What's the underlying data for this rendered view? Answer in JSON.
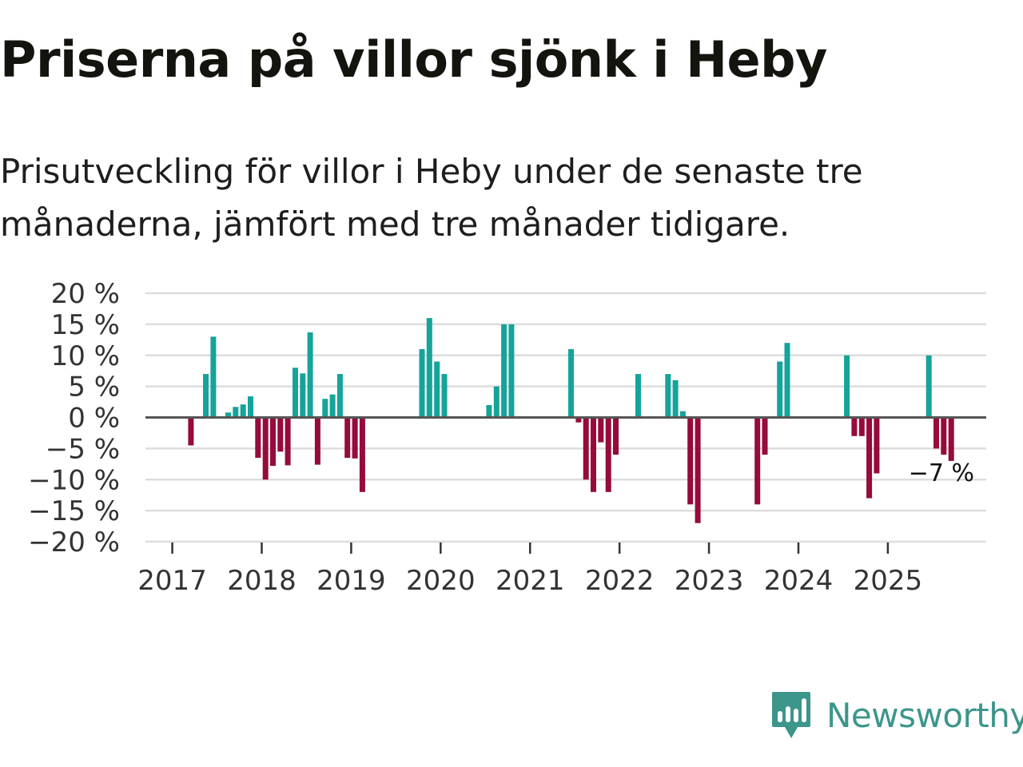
{
  "header": {
    "title": "Priserna på villor sjönk i Heby",
    "subtitle": "Prisutveckling för villor i Heby under de senaste tre månaderna, jämfört med tre månader tidigare."
  },
  "brand": {
    "name": "Newsworthy"
  },
  "colors": {
    "positive": "#16a39a",
    "negative": "#960a3c",
    "brand": "#3c968c",
    "grid": "#dddddd",
    "zero": "#555555"
  },
  "chart_data": {
    "type": "bar",
    "title": "Priserna på villor sjönk i Heby",
    "ylim": [
      -20,
      20
    ],
    "yticks": [
      20,
      15,
      10,
      5,
      0,
      -5,
      -10,
      -15,
      -20
    ],
    "ytick_labels": [
      "20 %",
      "15 %",
      "10 %",
      "5 %",
      "0 %",
      "−5 %",
      "−10 %",
      "−15 %",
      "−20 %"
    ],
    "xlim": [
      2016.7,
      2026.1
    ],
    "xticks": [
      2017,
      2018,
      2019,
      2020,
      2021,
      2022,
      2023,
      2024,
      2025
    ],
    "xtick_labels": [
      "2017",
      "2018",
      "2019",
      "2020",
      "2021",
      "2022",
      "2023",
      "2024",
      "2025"
    ],
    "last_label": "−7 %",
    "series": [
      {
        "name": "Prisutveckling",
        "points": [
          {
            "date": "2017-03",
            "value": -4.5
          },
          {
            "date": "2017-05",
            "value": 7
          },
          {
            "date": "2017-06",
            "value": 13
          },
          {
            "date": "2017-08",
            "value": 0.8
          },
          {
            "date": "2017-09",
            "value": 1.7
          },
          {
            "date": "2017-10",
            "value": 2.1
          },
          {
            "date": "2017-11",
            "value": 3.4
          },
          {
            "date": "2017-12",
            "value": -6.5
          },
          {
            "date": "2018-01",
            "value": -10
          },
          {
            "date": "2018-02",
            "value": -7.8
          },
          {
            "date": "2018-03",
            "value": -5.5
          },
          {
            "date": "2018-04",
            "value": -7.7
          },
          {
            "date": "2018-05",
            "value": 8
          },
          {
            "date": "2018-06",
            "value": 7.1
          },
          {
            "date": "2018-07",
            "value": 13.7
          },
          {
            "date": "2018-08",
            "value": -7.6
          },
          {
            "date": "2018-09",
            "value": 3
          },
          {
            "date": "2018-10",
            "value": 3.7
          },
          {
            "date": "2018-11",
            "value": 7
          },
          {
            "date": "2018-12",
            "value": -6.5
          },
          {
            "date": "2019-01",
            "value": -6.6
          },
          {
            "date": "2019-02",
            "value": -12
          },
          {
            "date": "2019-10",
            "value": 11
          },
          {
            "date": "2019-11",
            "value": 16
          },
          {
            "date": "2019-12",
            "value": 9
          },
          {
            "date": "2020-01",
            "value": 7
          },
          {
            "date": "2020-07",
            "value": 2
          },
          {
            "date": "2020-08",
            "value": 5
          },
          {
            "date": "2020-09",
            "value": 15
          },
          {
            "date": "2020-10",
            "value": 15
          },
          {
            "date": "2021-06",
            "value": 11
          },
          {
            "date": "2021-07",
            "value": -0.8
          },
          {
            "date": "2021-08",
            "value": -10
          },
          {
            "date": "2021-09",
            "value": -12
          },
          {
            "date": "2021-10",
            "value": -4
          },
          {
            "date": "2021-11",
            "value": -12
          },
          {
            "date": "2021-12",
            "value": -6
          },
          {
            "date": "2022-03",
            "value": 7
          },
          {
            "date": "2022-07",
            "value": 7
          },
          {
            "date": "2022-08",
            "value": 6
          },
          {
            "date": "2022-09",
            "value": 1
          },
          {
            "date": "2022-10",
            "value": -14
          },
          {
            "date": "2022-11",
            "value": -17
          },
          {
            "date": "2023-07",
            "value": -14
          },
          {
            "date": "2023-08",
            "value": -6
          },
          {
            "date": "2023-10",
            "value": 9
          },
          {
            "date": "2023-11",
            "value": 12
          },
          {
            "date": "2024-07",
            "value": 10
          },
          {
            "date": "2024-08",
            "value": -3
          },
          {
            "date": "2024-09",
            "value": -3
          },
          {
            "date": "2024-10",
            "value": -13
          },
          {
            "date": "2024-11",
            "value": -9
          },
          {
            "date": "2025-06",
            "value": 10
          },
          {
            "date": "2025-07",
            "value": -5
          },
          {
            "date": "2025-08",
            "value": -6
          },
          {
            "date": "2025-09",
            "value": -7
          }
        ]
      }
    ]
  }
}
